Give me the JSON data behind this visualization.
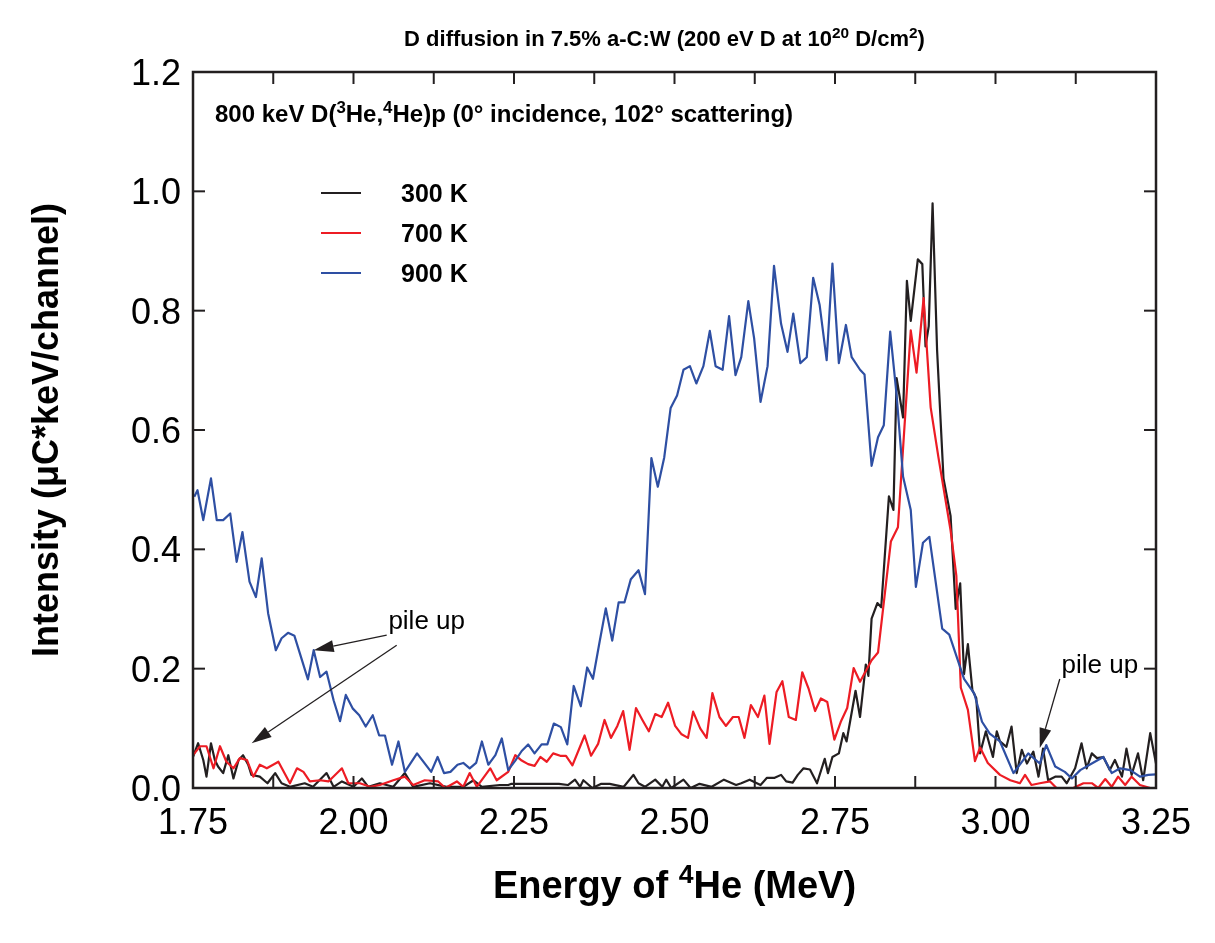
{
  "chart_data": {
    "type": "line",
    "title": "D diffusion in 7.5% a-C:W  (200 eV D at 10$^{20}$ D/cm$^{2}$)",
    "subtitle": "800 keV  D($^{3}$He,$^{4}$He)p (0° incidence, 102° scattering)",
    "xlabel": "Energy of $^{4}$He (MeV)",
    "ylabel": "Intensity (μC*keV/channel)",
    "xlim": [
      1.75,
      3.25
    ],
    "ylim": [
      0,
      1.2
    ],
    "xticks": [
      1.75,
      {
        "value": 1.875,
        "label": null
      },
      {
        "value": 2,
        "label": "2.00"
      },
      {
        "value": 2.125,
        "label": null
      },
      2.25,
      {
        "value": 2.375,
        "label": null
      },
      {
        "value": 2.5,
        "label": "2.50"
      },
      {
        "value": 2.625,
        "label": null
      },
      2.75,
      {
        "value": 2.875,
        "label": null
      },
      {
        "value": 3,
        "label": "3.00"
      },
      {
        "value": 3.125,
        "label": null
      },
      3.25
    ],
    "yticks": [
      {
        "value": 0,
        "label": "0.0"
      },
      0.2,
      0.4,
      0.6,
      0.8,
      {
        "value": 1,
        "label": "1.0"
      },
      1.2
    ],
    "legend": "top left",
    "annotations": [
      {
        "text": "pile up",
        "x": 1.938,
        "y": 0.231
      },
      {
        "text": "pile up",
        "x": 3.069,
        "y": 0.067
      }
    ],
    "series": [
      {
        "name": "300 K",
        "color": "#231f20",
        "x": [
          1.75,
          1.758,
          1.766,
          1.771,
          1.778,
          1.784,
          1.789,
          1.797,
          1.805,
          1.813,
          1.821,
          1.828,
          1.836,
          1.841,
          1.854,
          1.866,
          1.878,
          1.888,
          1.901,
          1.924,
          1.937,
          1.958,
          1.969,
          1.982,
          2.0,
          2.013,
          2.023,
          2.041,
          2.062,
          2.08,
          2.093,
          2.119,
          2.145,
          2.171,
          2.187,
          2.2,
          2.228,
          2.241,
          2.246,
          2.268,
          2.295,
          2.32,
          2.334,
          2.345,
          2.353,
          2.358,
          2.372,
          2.386,
          2.399,
          2.421,
          2.436,
          2.444,
          2.454,
          2.47,
          2.481,
          2.487,
          2.495,
          2.514,
          2.525,
          2.539,
          2.558,
          2.577,
          2.596,
          2.604,
          2.617,
          2.634,
          2.644,
          2.656,
          2.666,
          2.674,
          2.684,
          2.692,
          2.701,
          2.711,
          2.722,
          2.734,
          2.739,
          2.746,
          2.756,
          2.763,
          2.768,
          2.782,
          2.789,
          2.798,
          2.802,
          2.807,
          2.816,
          2.822,
          2.834,
          2.841,
          2.846,
          2.856,
          2.862,
          2.868,
          2.879,
          2.886,
          2.891,
          2.896,
          2.902,
          2.909,
          2.919,
          2.93,
          2.938,
          2.945,
          2.951,
          2.957,
          2.964,
          2.97,
          2.976,
          2.985,
          2.996,
          3.002,
          3.007,
          3.017,
          3.025,
          3.033,
          3.041,
          3.049,
          3.059,
          3.067,
          3.074,
          3.082,
          3.093,
          3.103,
          3.111,
          3.124,
          3.134,
          3.142,
          3.15,
          3.158,
          3.168,
          3.178,
          3.186,
          3.197,
          3.204,
          3.212,
          3.222,
          3.23,
          3.241,
          3.25
        ],
        "values": [
          0.052,
          0.075,
          0.047,
          0.019,
          0.075,
          0.047,
          0.036,
          0.025,
          0.055,
          0.016,
          0.047,
          0.055,
          0.039,
          0.022,
          0.019,
          0.008,
          0.025,
          0.008,
          0.002,
          0.008,
          0.002,
          0.025,
          0.002,
          0.011,
          0.002,
          0.016,
          0.002,
          0.008,
          0.002,
          0.025,
          0.002,
          0.008,
          0.002,
          0.002,
          0.013,
          0.002,
          0.005,
          0.005,
          0.007,
          0.007,
          0.007,
          0.007,
          0.005,
          0.014,
          0.002,
          0.013,
          0,
          0.007,
          0.007,
          0.002,
          0.022,
          0.008,
          0.002,
          0.014,
          0.002,
          0.014,
          0,
          0.014,
          0,
          0.007,
          0.002,
          0.014,
          0.005,
          0.008,
          0.014,
          0.005,
          0.017,
          0.017,
          0.022,
          0.011,
          0.009,
          0.022,
          0.033,
          0.031,
          0.008,
          0.049,
          0.025,
          0.052,
          0.058,
          0.092,
          0.078,
          0.163,
          0.119,
          0.207,
          0.188,
          0.284,
          0.31,
          0.303,
          0.489,
          0.466,
          0.687,
          0.621,
          0.85,
          0.783,
          0.886,
          0.878,
          0.74,
          0.774,
          0.98,
          0.734,
          0.519,
          0.456,
          0.3,
          0.343,
          0.191,
          0.241,
          0.164,
          0.151,
          0.058,
          0.095,
          0.052,
          0.095,
          0.078,
          0.069,
          0.103,
          0.025,
          0.064,
          0.041,
          0.061,
          0.019,
          0.066,
          0.013,
          0.019,
          0.019,
          0.008,
          0.033,
          0.075,
          0.033,
          0.058,
          0.05,
          0.052,
          0.03,
          0.047,
          0.019,
          0.066,
          0.022,
          0.058,
          0.013,
          0.092,
          0.041
        ]
      },
      {
        "name": "700 K",
        "color": "#ed1c24",
        "x": [
          1.75,
          1.761,
          1.771,
          1.782,
          1.792,
          1.802,
          1.813,
          1.823,
          1.834,
          1.844,
          1.854,
          1.865,
          1.883,
          1.901,
          1.912,
          1.922,
          1.932,
          1.948,
          1.961,
          1.982,
          1.992,
          2.01,
          2.026,
          2.041,
          2.062,
          2.08,
          2.093,
          2.111,
          2.132,
          2.143,
          2.161,
          2.171,
          2.181,
          2.192,
          2.213,
          2.223,
          2.241,
          2.252,
          2.262,
          2.272,
          2.282,
          2.291,
          2.301,
          2.311,
          2.322,
          2.331,
          2.341,
          2.36,
          2.37,
          2.381,
          2.391,
          2.401,
          2.411,
          2.42,
          2.43,
          2.44,
          2.45,
          2.46,
          2.47,
          2.48,
          2.49,
          2.501,
          2.511,
          2.521,
          2.529,
          2.54,
          2.55,
          2.559,
          2.57,
          2.58,
          2.591,
          2.6,
          2.609,
          2.619,
          2.63,
          2.64,
          2.648,
          2.659,
          2.668,
          2.678,
          2.689,
          2.699,
          2.709,
          2.719,
          2.728,
          2.738,
          2.749,
          2.759,
          2.769,
          2.779,
          2.789,
          2.807,
          2.817,
          2.837,
          2.848,
          2.868,
          2.877,
          2.888,
          2.899,
          2.911,
          2.93,
          2.939,
          2.946,
          2.957,
          2.968,
          2.976,
          2.988,
          3.007,
          3.023,
          3.038,
          3.046,
          3.056,
          3.069,
          3.085,
          3.095,
          3.121,
          3.137,
          3.15,
          3.16,
          3.171,
          3.181,
          3.191,
          3.202,
          3.212,
          3.225,
          3.241
        ],
        "values": [
          0.055,
          0.07,
          0.07,
          0.033,
          0.07,
          0.044,
          0.033,
          0.05,
          0.047,
          0.019,
          0.039,
          0.033,
          0.044,
          0.008,
          0.033,
          0.027,
          0.011,
          0.013,
          0.011,
          0.033,
          0.008,
          0.008,
          0.002,
          0.005,
          0.013,
          0.019,
          0.005,
          0.013,
          0.011,
          0,
          0.011,
          0.002,
          0.025,
          0.002,
          0.033,
          0.013,
          0.027,
          0.055,
          0.046,
          0.04,
          0.037,
          0.052,
          0.044,
          0.058,
          0.054,
          0.054,
          0.038,
          0.088,
          0.054,
          0.074,
          0.114,
          0.084,
          0.104,
          0.129,
          0.064,
          0.134,
          0.114,
          0.095,
          0.124,
          0.119,
          0.143,
          0.104,
          0.09,
          0.084,
          0.128,
          0.1,
          0.084,
          0.159,
          0.119,
          0.104,
          0.119,
          0.119,
          0.084,
          0.139,
          0.119,
          0.155,
          0.074,
          0.161,
          0.179,
          0.119,
          0.114,
          0.194,
          0.166,
          0.129,
          0.15,
          0.144,
          0.081,
          0.111,
          0.134,
          0.201,
          0.178,
          0.214,
          0.227,
          0.413,
          0.437,
          0.767,
          0.696,
          0.821,
          0.638,
          0.555,
          0.432,
          0.356,
          0.168,
          0.131,
          0.045,
          0.068,
          0.042,
          0.022,
          0.013,
          0.008,
          0.022,
          0.005,
          0.008,
          0.011,
          0,
          0,
          0.008,
          0.008,
          0,
          0.015,
          0.002,
          0.019,
          0.005,
          0.019,
          0.005,
          0
        ]
      },
      {
        "name": "900 K",
        "color": "#2e4fa3",
        "x": [
          1.752,
          1.757,
          1.766,
          1.778,
          1.787,
          1.797,
          1.808,
          1.818,
          1.827,
          1.838,
          1.848,
          1.857,
          1.867,
          1.879,
          1.888,
          1.898,
          1.908,
          1.929,
          1.938,
          1.948,
          1.958,
          1.969,
          1.979,
          1.988,
          1.999,
          2.009,
          2.019,
          2.03,
          2.04,
          2.049,
          2.06,
          2.07,
          2.08,
          2.099,
          2.121,
          2.131,
          2.141,
          2.151,
          2.162,
          2.171,
          2.181,
          2.191,
          2.2,
          2.21,
          2.221,
          2.231,
          2.241,
          2.252,
          2.262,
          2.272,
          2.282,
          2.293,
          2.302,
          2.312,
          2.323,
          2.333,
          2.343,
          2.354,
          2.364,
          2.373,
          2.383,
          2.393,
          2.403,
          2.413,
          2.422,
          2.432,
          2.444,
          2.454,
          2.464,
          2.474,
          2.484,
          2.494,
          2.504,
          2.514,
          2.524,
          2.534,
          2.545,
          2.555,
          2.564,
          2.575,
          2.585,
          2.595,
          2.604,
          2.615,
          2.624,
          2.634,
          2.645,
          2.655,
          2.666,
          2.676,
          2.685,
          2.696,
          2.706,
          2.716,
          2.726,
          2.737,
          2.746,
          2.756,
          2.767,
          2.776,
          2.789,
          2.796,
          2.807,
          2.817,
          2.826,
          2.836,
          2.846,
          2.856,
          2.868,
          2.876,
          2.887,
          2.897,
          2.917,
          2.928,
          2.951,
          2.967,
          2.979,
          2.991,
          3.007,
          3.028,
          3.051,
          3.069,
          3.079,
          3.093,
          3.108,
          3.119,
          3.132,
          3.15,
          3.168,
          3.181,
          3.194,
          3.21,
          3.225,
          3.238,
          3.25
        ],
        "values": [
          0.488,
          0.499,
          0.449,
          0.519,
          0.449,
          0.449,
          0.46,
          0.379,
          0.429,
          0.346,
          0.32,
          0.385,
          0.293,
          0.231,
          0.251,
          0.26,
          0.255,
          0.182,
          0.231,
          0.186,
          0.195,
          0.147,
          0.112,
          0.156,
          0.133,
          0.122,
          0.103,
          0.122,
          0.088,
          0.088,
          0.039,
          0.078,
          0.027,
          0.058,
          0.027,
          0.052,
          0.025,
          0.027,
          0.039,
          0.042,
          0.033,
          0.042,
          0.078,
          0.039,
          0.055,
          0.083,
          0.03,
          0.046,
          0.062,
          0.073,
          0.058,
          0.073,
          0.073,
          0.108,
          0.102,
          0.073,
          0.171,
          0.137,
          0.202,
          0.183,
          0.243,
          0.301,
          0.247,
          0.311,
          0.311,
          0.35,
          0.365,
          0.325,
          0.553,
          0.505,
          0.554,
          0.637,
          0.658,
          0.701,
          0.707,
          0.678,
          0.707,
          0.766,
          0.707,
          0.701,
          0.791,
          0.692,
          0.722,
          0.816,
          0.754,
          0.647,
          0.707,
          0.875,
          0.778,
          0.731,
          0.795,
          0.712,
          0.722,
          0.855,
          0.81,
          0.717,
          0.879,
          0.712,
          0.776,
          0.722,
          0.701,
          0.693,
          0.54,
          0.588,
          0.608,
          0.765,
          0.658,
          0.522,
          0.466,
          0.337,
          0.411,
          0.421,
          0.267,
          0.257,
          0.183,
          0.158,
          0.111,
          0.091,
          0.078,
          0.025,
          0.058,
          0.041,
          0.072,
          0.036,
          0.027,
          0.016,
          0.03,
          0.041,
          0.052,
          0.025,
          0.033,
          0.03,
          0.019,
          0.022,
          0.023
        ]
      }
    ]
  }
}
